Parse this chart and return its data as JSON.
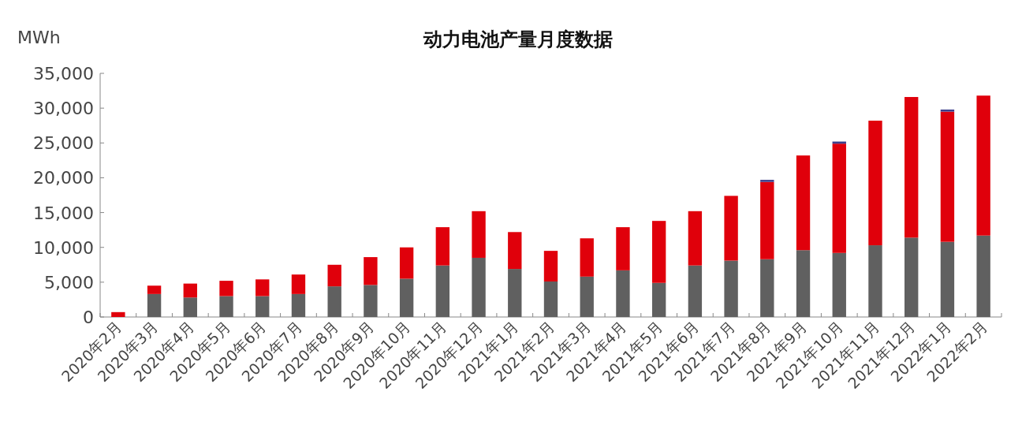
{
  "chart_data": {
    "type": "bar",
    "title": "动力电池产量月度数据",
    "ylabel": "MWh",
    "stacked": true,
    "categories": [
      "2020年2月",
      "2020年3月",
      "2020年4月",
      "2020年5月",
      "2020年6月",
      "2020年7月",
      "2020年8月",
      "2020年9月",
      "2020年10月",
      "2020年11月",
      "2020年12月",
      "2021年1月",
      "2021年2月",
      "2021年3月",
      "2021年4月",
      "2021年5月",
      "2021年6月",
      "2021年7月",
      "2021年8月",
      "2021年9月",
      "2021年10月",
      "2021年11月",
      "2021年12月",
      "2022年1月",
      "2022年2月"
    ],
    "series": [
      {
        "color": "#606060",
        "values": [
          null,
          3300,
          2800,
          3000,
          3000,
          3300,
          4400,
          4600,
          5500,
          7400,
          8500,
          6900,
          5100,
          5800,
          6700,
          4900,
          7400,
          8100,
          8300,
          9600,
          9200,
          10300,
          11400,
          10800,
          11700
        ]
      },
      {
        "color": "#e0000b",
        "values": [
          700,
          1200,
          2000,
          2200,
          2400,
          2800,
          3100,
          4000,
          4500,
          5500,
          6700,
          5300,
          4400,
          5500,
          6200,
          8900,
          7800,
          9300,
          11100,
          13600,
          15700,
          17900,
          20200,
          18700,
          20100
        ]
      },
      {
        "color": "#3c3f8c",
        "values": [
          null,
          null,
          null,
          null,
          null,
          null,
          null,
          null,
          null,
          null,
          null,
          null,
          null,
          null,
          null,
          null,
          null,
          null,
          300,
          null,
          300,
          null,
          null,
          300,
          null
        ]
      }
    ],
    "ylim": [
      0,
      35000
    ],
    "yticks": [
      0,
      {
        "value": 5000,
        "label": "5,000"
      },
      {
        "value": 10000,
        "label": "10,000"
      },
      {
        "value": 15000,
        "label": "15,000"
      },
      {
        "value": 20000,
        "label": "20,000"
      },
      {
        "value": 25000,
        "label": "25,000"
      },
      {
        "value": 30000,
        "label": "30,000"
      },
      {
        "value": 35000,
        "label": "35,000"
      }
    ],
    "grid": false
  }
}
